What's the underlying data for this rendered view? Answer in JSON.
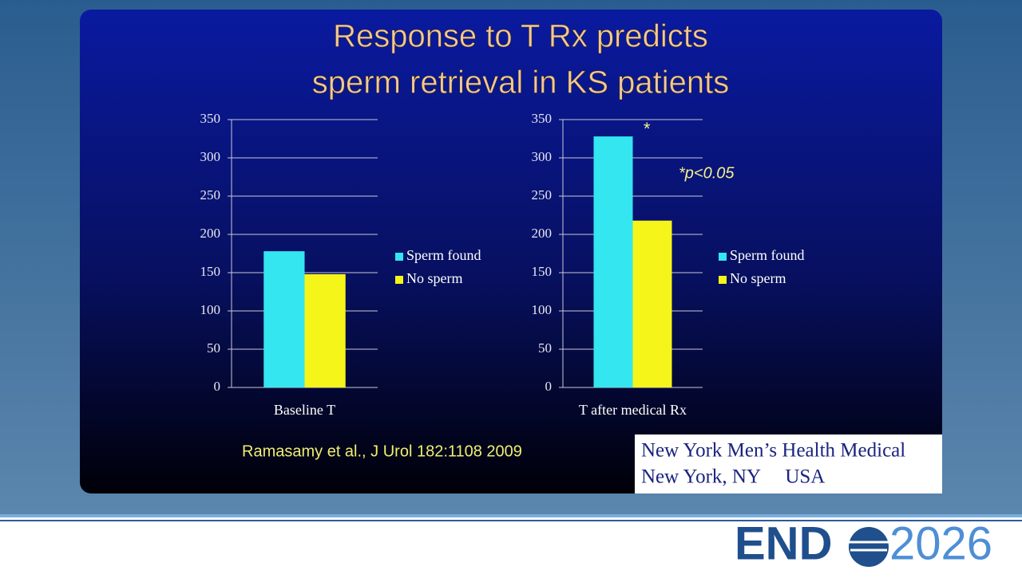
{
  "slide": {
    "title": [
      "Response to T Rx predicts",
      "sperm retrieval in KS patients"
    ],
    "citation": "Ramasamy et al., J Urol 182:1108 2009",
    "footer": [
      "New York Men’s Health Medical",
      "New York, NY     USA"
    ],
    "logo": {
      "left": "END",
      "right": "2026"
    }
  },
  "chart_data": [
    {
      "type": "bar",
      "categories": [
        "Baseline T"
      ],
      "series": [
        {
          "name": "Sperm found",
          "color": "#33e6f0",
          "values": [
            178
          ]
        },
        {
          "name": "No sperm",
          "color": "#f5f51a",
          "values": [
            148
          ]
        }
      ],
      "ylim": [
        0,
        350
      ],
      "yticks": [
        0,
        50,
        100,
        150,
        200,
        250,
        300,
        350
      ],
      "grid": true,
      "legend": "right"
    },
    {
      "type": "bar",
      "categories": [
        "T after medical Rx"
      ],
      "series": [
        {
          "name": "Sperm found",
          "color": "#33e6f0",
          "values": [
            328
          ]
        },
        {
          "name": "No sperm",
          "color": "#f5f51a",
          "values": [
            218
          ]
        }
      ],
      "ylim": [
        0,
        350
      ],
      "yticks": [
        0,
        50,
        100,
        150,
        200,
        250,
        300,
        350
      ],
      "grid": true,
      "legend": "right",
      "annotations": [
        "*",
        "*p<0.05"
      ]
    }
  ]
}
